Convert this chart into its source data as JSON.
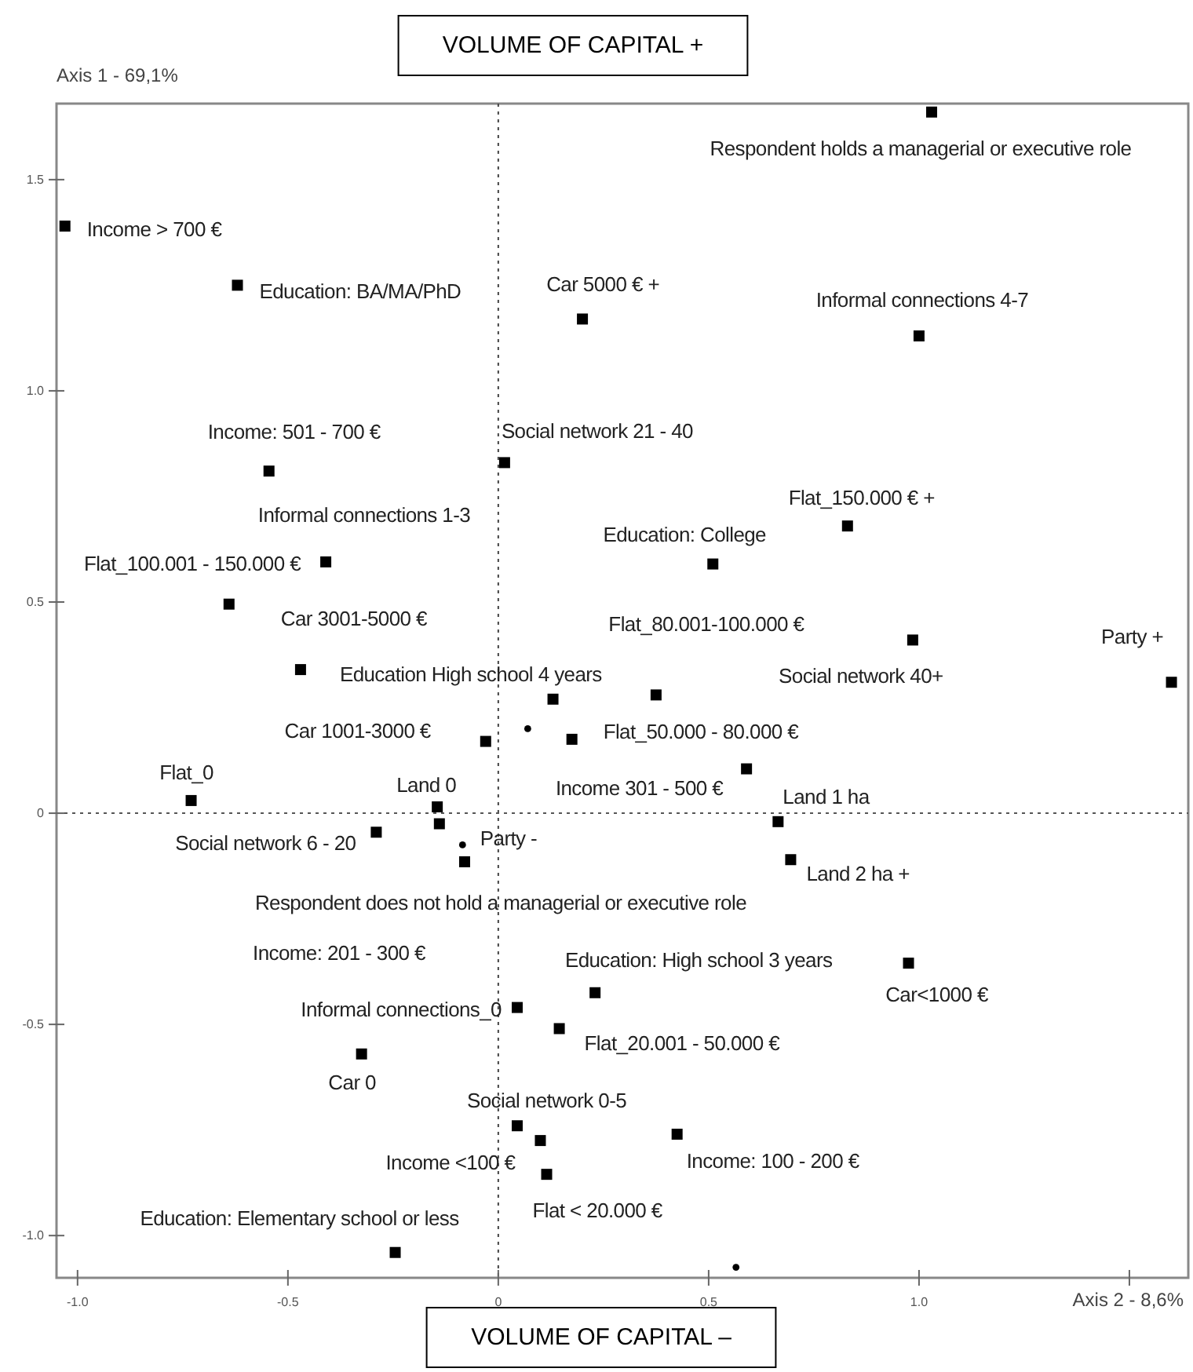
{
  "chart_data": {
    "type": "scatter",
    "xlabel": "Axis 2 - 8,6%",
    "ylabel": "Axis 1 - 69,1%",
    "xlim": [
      -1.05,
      1.64
    ],
    "ylim": [
      -1.1,
      1.68
    ],
    "xticks": [
      {
        "value": -1.0,
        "label": "-1.0"
      },
      {
        "value": -0.5,
        "label": "-0.5"
      },
      0,
      {
        "value": 0.5,
        "label": "0.5"
      },
      {
        "value": 1.0,
        "label": "1.0"
      },
      {
        "value": 1.5,
        "label": null
      }
    ],
    "yticks": [
      {
        "value": -1.0,
        "label": "-1.0"
      },
      {
        "value": -0.5,
        "label": "-0.5"
      },
      0,
      {
        "value": 0.5,
        "label": "0.5"
      },
      {
        "value": 1.0,
        "label": "1.0"
      },
      {
        "value": 1.5,
        "label": "1.5"
      }
    ],
    "ref_lines": [
      {
        "axis": "x",
        "value": 0,
        "line_style": "dotted",
        "color": "#444444"
      },
      {
        "axis": "y",
        "value": 0,
        "line_style": "dotted",
        "color": "#555555"
      }
    ],
    "series": [
      {
        "color": "#000000",
        "marker": "square",
        "x": [
          1.03,
          -1.03,
          -0.62,
          0.2,
          1.0,
          -0.545,
          0.015,
          -0.41,
          -0.64,
          -0.47,
          0.83,
          0.51,
          0.985,
          1.6,
          0.13,
          0.375,
          -0.03,
          0.175,
          0.59,
          -0.73,
          -0.145,
          -0.14,
          -0.29,
          -0.08,
          0.665,
          0.695,
          0.975,
          0.23,
          0.045,
          0.145,
          -0.325,
          0.045,
          0.1,
          0.115,
          0.425,
          -0.245
        ],
        "values": [
          1.66,
          1.39,
          1.25,
          1.17,
          1.13,
          0.81,
          0.83,
          0.595,
          0.495,
          0.34,
          0.68,
          0.59,
          0.41,
          0.31,
          0.27,
          0.28,
          0.17,
          0.175,
          0.105,
          0.03,
          0.015,
          -0.025,
          -0.045,
          -0.115,
          -0.02,
          -0.11,
          -0.355,
          -0.425,
          -0.46,
          -0.51,
          -0.57,
          -0.74,
          -0.775,
          -0.855,
          -0.76,
          -1.04
        ]
      },
      {
        "color": "#000000",
        "marker": "circle",
        "x": [
          0.07,
          -0.085,
          0.565
        ],
        "values": [
          0.2,
          -0.075,
          -1.075
        ]
      }
    ],
    "annotations": [
      "VOLUME OF CAPITAL +",
      "VOLUME OF CAPITAL –",
      "Informal connections 1-3",
      "Income: 201 - 300 €",
      {
        "text": "Respondent holds a managerial or executive role",
        "x": 1.03,
        "y": 1.66
      },
      {
        "text": "Income > 700 €",
        "x": -1.03,
        "y": 1.39
      },
      {
        "text": "Education: BA/MA/PhD",
        "x": -0.62,
        "y": 1.25
      },
      {
        "text": "Car 5000 € +",
        "x": 0.2,
        "y": 1.17
      },
      {
        "text": "Informal connections 4-7",
        "x": 1.0,
        "y": 1.13
      },
      {
        "text": "Income: 501 - 700 €",
        "x": -0.545,
        "y": 0.81
      },
      {
        "text": "Social network 21 - 40",
        "x": 0.015,
        "y": 0.83
      },
      {
        "text": "Flat_100.001 - 150.000 €",
        "x": -0.41,
        "y": 0.595
      },
      {
        "text": "Car 3001-5000 €",
        "x": -0.64,
        "y": 0.495
      },
      {
        "text": "Education High school 4 years",
        "x": -0.47,
        "y": 0.34
      },
      {
        "text": "Flat_150.000 € +",
        "x": 0.83,
        "y": 0.68
      },
      {
        "text": "Education: College",
        "x": 0.51,
        "y": 0.59
      },
      {
        "text": "Social network 40+",
        "x": 0.985,
        "y": 0.41
      },
      {
        "text": "Flat_80.001-100.000 €",
        "x": 0.375,
        "y": 0.28
      },
      {
        "text": "Party +",
        "x": 1.6,
        "y": 0.31
      },
      {
        "text": "Car 1001-3000 €",
        "x": -0.03,
        "y": 0.17
      },
      {
        "text": "Flat_50.000 - 80.000 €",
        "x": 0.175,
        "y": 0.175
      },
      {
        "text": "Income 301 - 500 €",
        "x": 0.59,
        "y": 0.105
      },
      {
        "text": "Flat_0",
        "x": -0.73,
        "y": 0.03
      },
      {
        "text": "Land 0",
        "x": -0.145,
        "y": 0.015
      },
      {
        "text": "Social network 6 - 20",
        "x": -0.29,
        "y": -0.045
      },
      {
        "text": "Party -",
        "x": -0.14,
        "y": -0.025
      },
      {
        "text": "Respondent does not hold a managerial or executive role",
        "x": -0.08,
        "y": -0.115
      },
      {
        "text": "Land 1 ha",
        "x": 0.665,
        "y": -0.02
      },
      {
        "text": "Land 2 ha +",
        "x": 0.695,
        "y": -0.11
      },
      {
        "text": "Car<1000 €",
        "x": 0.975,
        "y": -0.355
      },
      {
        "text": "Education: High school 3 years",
        "x": 0.23,
        "y": -0.425
      },
      {
        "text": "Informal connections_0",
        "x": 0.045,
        "y": -0.46
      },
      {
        "text": "Flat_20.001 - 50.000 €",
        "x": 0.145,
        "y": -0.51
      },
      {
        "text": "Car 0",
        "x": -0.325,
        "y": -0.57
      },
      {
        "text": "Social network 0-5",
        "x": 0.045,
        "y": -0.74
      },
      {
        "text": "Income <100 €",
        "x": 0.1,
        "y": -0.775
      },
      {
        "text": "Flat < 20.000 €",
        "x": 0.115,
        "y": -0.855
      },
      {
        "text": "Income: 100 - 200 €",
        "x": 0.425,
        "y": -0.76
      },
      {
        "text": "Education: Elementary school or less",
        "x": -0.245,
        "y": -1.04
      }
    ]
  }
}
